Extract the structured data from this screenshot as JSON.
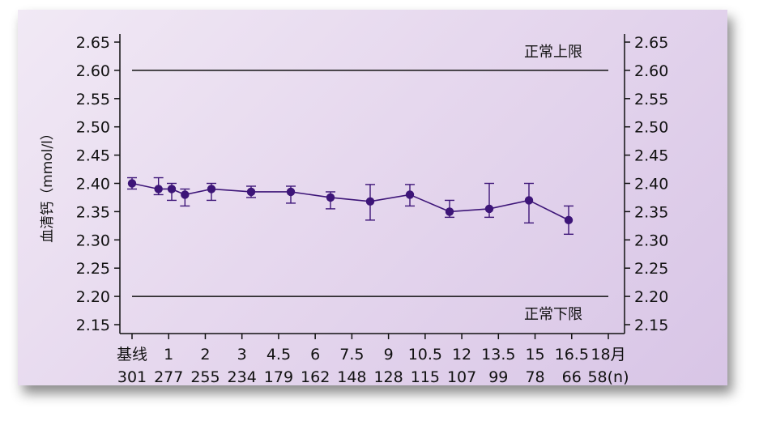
{
  "chart_data": {
    "type": "line",
    "ylabel": "血清钙（mmol/l）",
    "ylim": [
      2.13,
      2.66
    ],
    "yticks": [
      "2.15",
      "2.20",
      "2.25",
      "2.30",
      "2.35",
      "2.40",
      "2.45",
      "2.50",
      "2.55",
      "2.60",
      "2.65"
    ],
    "secondary_yaxis": true,
    "categories": [
      "基线",
      "1",
      "2",
      "3",
      "4.5",
      "6",
      "7.5",
      "9",
      "10.5",
      "12",
      "13.5",
      "15",
      "16.5",
      "18月"
    ],
    "n_values": [
      "301",
      "277",
      "255",
      "234",
      "179",
      "162",
      "148",
      "128",
      "115",
      "107",
      "99",
      "78",
      "66",
      "58(n)"
    ],
    "x_positions": [
      0,
      1,
      1.5,
      2,
      3,
      4.5,
      6,
      7.5,
      9,
      10.5,
      12,
      13.5,
      15,
      16.5,
      18
    ],
    "series": [
      {
        "color": "#3d1578",
        "points": [
          {
            "x": 0,
            "y": 2.4,
            "lo": 2.39,
            "hi": 2.41
          },
          {
            "x": 1,
            "y": 2.39,
            "lo": 2.38,
            "hi": 2.41
          },
          {
            "x": 1.5,
            "y": 2.39,
            "lo": 2.37,
            "hi": 2.4
          },
          {
            "x": 2,
            "y": 2.38,
            "lo": 2.36,
            "hi": 2.39
          },
          {
            "x": 3,
            "y": 2.39,
            "lo": 2.37,
            "hi": 2.4
          },
          {
            "x": 4.5,
            "y": 2.385,
            "lo": 2.375,
            "hi": 2.395
          },
          {
            "x": 6,
            "y": 2.385,
            "lo": 2.365,
            "hi": 2.395
          },
          {
            "x": 7.5,
            "y": 2.375,
            "lo": 2.355,
            "hi": 2.385
          },
          {
            "x": 9,
            "y": 2.368,
            "lo": 2.335,
            "hi": 2.398
          },
          {
            "x": 10.5,
            "y": 2.38,
            "lo": 2.36,
            "hi": 2.398
          },
          {
            "x": 12,
            "y": 2.35,
            "lo": 2.34,
            "hi": 2.37
          },
          {
            "x": 13.5,
            "y": 2.355,
            "lo": 2.34,
            "hi": 2.4
          },
          {
            "x": 15,
            "y": 2.37,
            "lo": 2.33,
            "hi": 2.4
          },
          {
            "x": 16.5,
            "y": 2.335,
            "lo": 2.31,
            "hi": 2.36
          }
        ]
      }
    ],
    "reference_lines": [
      {
        "y": 2.6,
        "label": "正常上限"
      },
      {
        "y": 2.2,
        "label": "正常下限"
      }
    ],
    "grid": false
  }
}
